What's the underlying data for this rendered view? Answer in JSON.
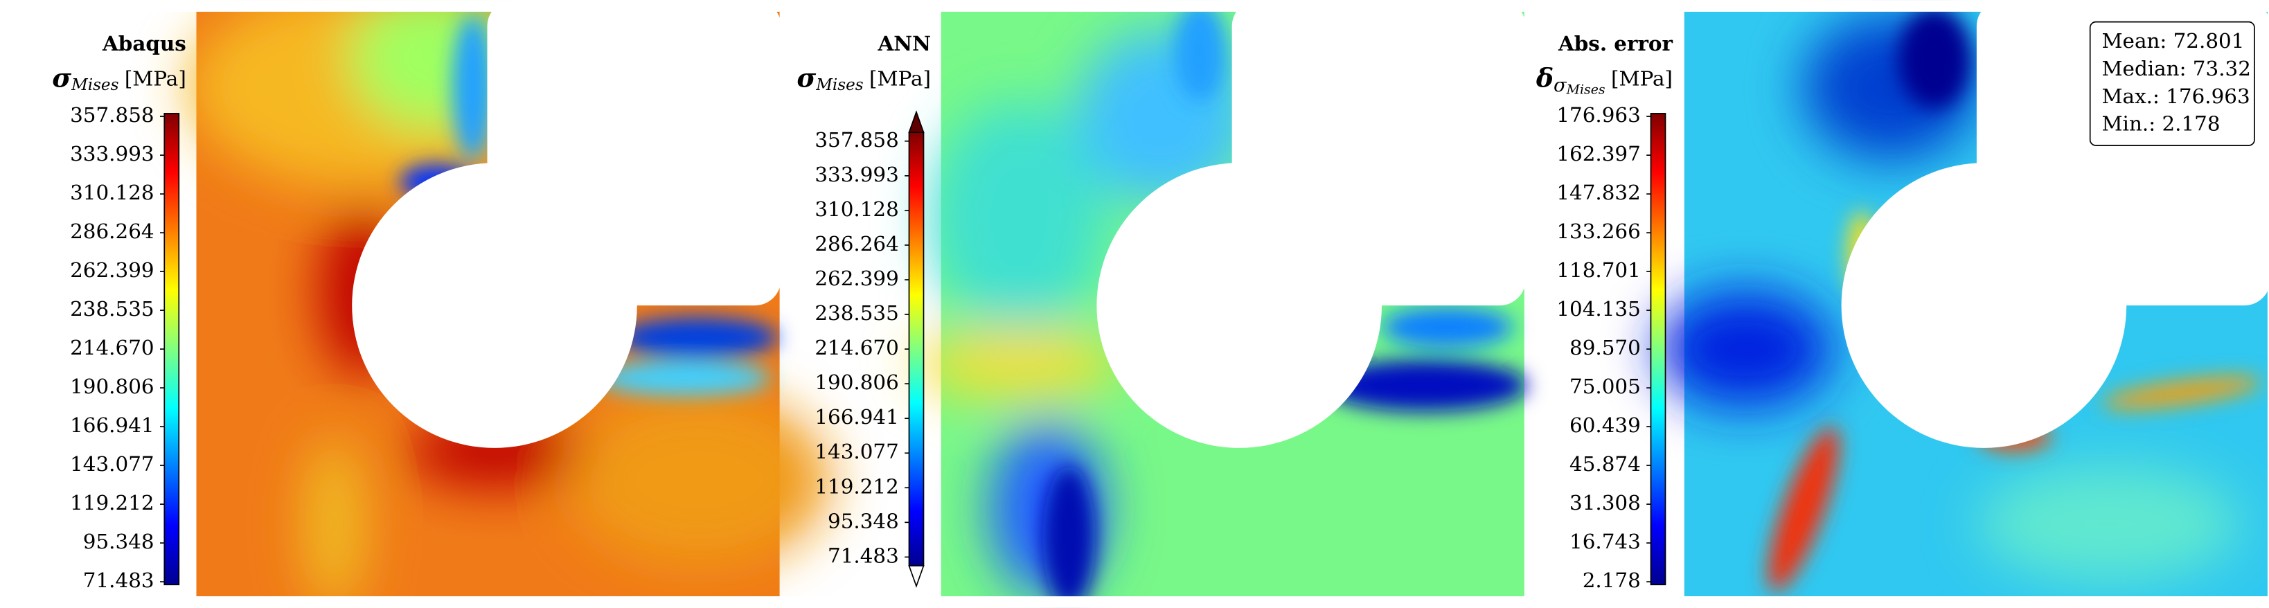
{
  "chart_data": [
    {
      "type": "heatmap",
      "title": "Abaqus",
      "label": {
        "symbol": "σ",
        "sub": "Mises",
        "unit": "[MPa]"
      },
      "colormap": "jet",
      "zlim": [
        71.483,
        357.858
      ],
      "zticks": [
        357.858,
        333.993,
        310.128,
        286.264,
        262.399,
        238.535,
        {
          "value": 214.67,
          "label": "214.670"
        },
        190.806,
        166.941,
        143.077,
        119.212,
        95.348,
        71.483
      ]
    },
    {
      "type": "heatmap",
      "title": "ANN",
      "label": {
        "symbol": "σ",
        "sub": "Mises",
        "unit": "[MPa]"
      },
      "colormap": "jet",
      "extend": "both",
      "zlim": [
        71.483,
        357.858
      ],
      "zticks": [
        357.858,
        333.993,
        310.128,
        286.264,
        262.399,
        238.535,
        {
          "value": 214.67,
          "label": "214.670"
        },
        190.806,
        166.941,
        143.077,
        119.212,
        95.348,
        71.483
      ]
    },
    {
      "type": "heatmap",
      "title": "Abs. error",
      "label": {
        "symbol": "δ",
        "sub": "σ",
        "subsub": "Mises",
        "unit": "[MPa]"
      },
      "colormap": "jet",
      "zlim": [
        2.178,
        176.963
      ],
      "zticks": [
        176.963,
        162.397,
        147.832,
        133.266,
        118.701,
        104.135,
        {
          "value": 89.57,
          "label": "89.570"
        },
        75.005,
        60.439,
        45.874,
        31.308,
        16.743,
        2.178
      ],
      "stats": [
        "Mean: 72.801",
        "Median: 73.32",
        "Max.: 176.963",
        "Min.: 2.178"
      ]
    }
  ]
}
